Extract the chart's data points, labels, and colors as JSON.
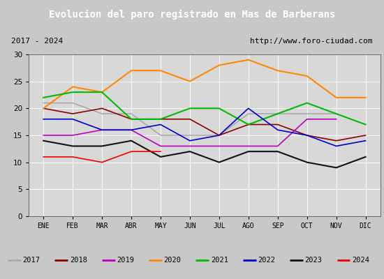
{
  "title": "Evolucion del paro registrado en Mas de Barberans",
  "subtitle_left": "2017 - 2024",
  "subtitle_right": "http://www.foro-ciudad.com",
  "months": [
    "ENE",
    "FEB",
    "MAR",
    "ABR",
    "MAY",
    "JUN",
    "JUL",
    "AGO",
    "SEP",
    "OCT",
    "NOV",
    "DIC"
  ],
  "series": {
    "2017": {
      "data": [
        21,
        21,
        19,
        19,
        15,
        15,
        15,
        19,
        19,
        19,
        19,
        null
      ],
      "color": "#aaaaaa",
      "lw": 1.2,
      "dashed": false
    },
    "2018": {
      "data": [
        20,
        19,
        20,
        18,
        18,
        18,
        15,
        17,
        17,
        15,
        14,
        15
      ],
      "color": "#8b0000",
      "lw": 1.2,
      "dashed": false
    },
    "2019": {
      "data": [
        15,
        15,
        16,
        16,
        13,
        13,
        13,
        13,
        13,
        18,
        18,
        null
      ],
      "color": "#bb00bb",
      "lw": 1.2,
      "dashed": false
    },
    "2020": {
      "data": [
        20,
        24,
        23,
        27,
        27,
        25,
        28,
        29,
        27,
        26,
        22,
        22
      ],
      "color": "#ff8800",
      "lw": 1.5,
      "dashed": false
    },
    "2021": {
      "data": [
        22,
        23,
        23,
        18,
        18,
        20,
        20,
        17,
        19,
        21,
        19,
        17
      ],
      "color": "#00bb00",
      "lw": 1.5,
      "dashed": false
    },
    "2022": {
      "data": [
        18,
        18,
        16,
        16,
        17,
        14,
        15,
        20,
        16,
        15,
        13,
        14
      ],
      "color": "#0000cc",
      "lw": 1.2,
      "dashed": false
    },
    "2023": {
      "data": [
        14,
        13,
        13,
        14,
        11,
        12,
        10,
        12,
        12,
        10,
        9,
        11
      ],
      "color": "#111111",
      "lw": 1.5,
      "dashed": false
    },
    "2024": {
      "data": [
        11,
        11,
        10,
        12,
        12,
        null,
        null,
        null,
        null,
        null,
        null,
        null
      ],
      "color": "#ee0000",
      "lw": 1.2,
      "dashed": false
    }
  },
  "ylim": [
    0,
    30
  ],
  "yticks": [
    0,
    5,
    10,
    15,
    20,
    25,
    30
  ],
  "bg_color": "#c8c8c8",
  "plot_bg": "#d8d8d8",
  "title_bg": "#4477cc",
  "title_color": "white",
  "header_bg": "#e0e0e0",
  "grid_color": "white"
}
